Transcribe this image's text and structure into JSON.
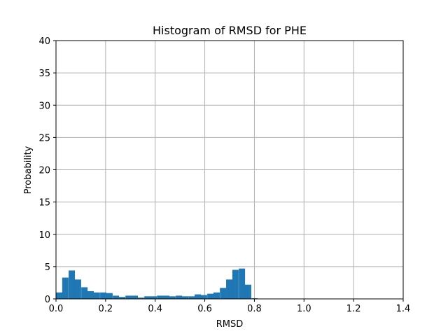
{
  "chart_data": {
    "type": "bar",
    "title": "Histogram of RMSD for PHE",
    "xlabel": "RMSD",
    "ylabel": "Probability",
    "xlim": [
      0.0,
      1.4
    ],
    "ylim": [
      0,
      40
    ],
    "xticks": [
      "0.0",
      "0.2",
      "0.4",
      "0.6",
      "0.8",
      "1.0",
      "1.2",
      "1.4"
    ],
    "yticks": [
      "0",
      "5",
      "10",
      "15",
      "20",
      "25",
      "30",
      "35",
      "40"
    ],
    "grid": true,
    "bar_color": "#1f77b4",
    "bin_width": 0.0254,
    "bins": [
      {
        "x": 0.0,
        "value": 1.0
      },
      {
        "x": 0.025,
        "value": 3.3
      },
      {
        "x": 0.051,
        "value": 4.4
      },
      {
        "x": 0.076,
        "value": 3.0
      },
      {
        "x": 0.102,
        "value": 1.8
      },
      {
        "x": 0.127,
        "value": 1.2
      },
      {
        "x": 0.152,
        "value": 1.0
      },
      {
        "x": 0.178,
        "value": 1.0
      },
      {
        "x": 0.203,
        "value": 0.9
      },
      {
        "x": 0.229,
        "value": 0.5
      },
      {
        "x": 0.254,
        "value": 0.3
      },
      {
        "x": 0.28,
        "value": 0.5
      },
      {
        "x": 0.305,
        "value": 0.5
      },
      {
        "x": 0.33,
        "value": 0.2
      },
      {
        "x": 0.356,
        "value": 0.4
      },
      {
        "x": 0.381,
        "value": 0.4
      },
      {
        "x": 0.407,
        "value": 0.5
      },
      {
        "x": 0.432,
        "value": 0.5
      },
      {
        "x": 0.457,
        "value": 0.4
      },
      {
        "x": 0.483,
        "value": 0.5
      },
      {
        "x": 0.508,
        "value": 0.4
      },
      {
        "x": 0.534,
        "value": 0.4
      },
      {
        "x": 0.559,
        "value": 0.7
      },
      {
        "x": 0.584,
        "value": 0.6
      },
      {
        "x": 0.61,
        "value": 0.8
      },
      {
        "x": 0.635,
        "value": 1.0
      },
      {
        "x": 0.661,
        "value": 1.7
      },
      {
        "x": 0.686,
        "value": 3.0
      },
      {
        "x": 0.711,
        "value": 4.5
      },
      {
        "x": 0.737,
        "value": 4.7
      },
      {
        "x": 0.762,
        "value": 2.2
      },
      {
        "x": 0.788,
        "value": 0.1
      }
    ]
  }
}
